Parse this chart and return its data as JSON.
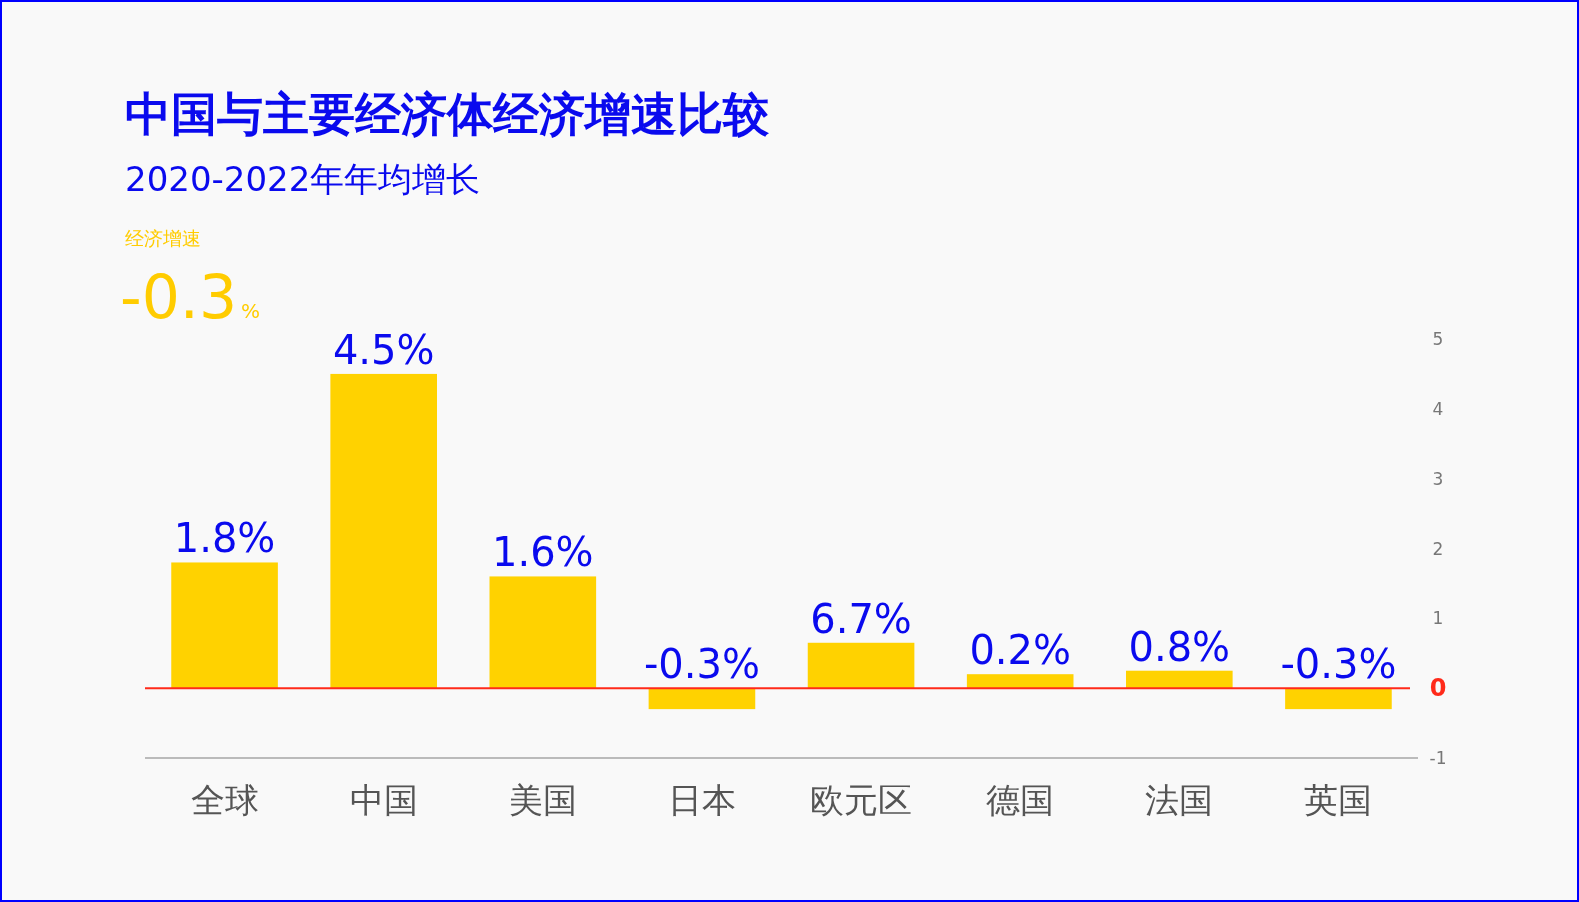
{
  "chart_data": {
    "type": "bar",
    "title": "中国与主要经济体经济增速比较",
    "subtitle": "2020-2022年年均增长",
    "annotations": [
      "经济增速",
      "-0.3%",
      {
        "text": "6.7%",
        "x": "欧元区",
        "y": 0.65
      },
      {
        "text": "0.8%",
        "x": "法国",
        "y": 0.25
      }
    ],
    "categories": [
      "全球",
      "中国",
      "美国",
      "日本",
      "欧元区",
      "德国",
      "法国",
      "英国"
    ],
    "values": [
      1.8,
      4.5,
      1.6,
      -0.3,
      0.65,
      0.2,
      0.25,
      -0.3
    ],
    "value_labels": [
      "1.8%",
      "4.5%",
      "1.6%",
      "-0.3%",
      null,
      "0.2%",
      null,
      "-0.3%"
    ],
    "color": "#ffd200",
    "ylim": [
      -1,
      5
    ],
    "yticks": [
      -1,
      0,
      1,
      2,
      3,
      4,
      5
    ],
    "ref_lines": [
      {
        "axis": "y",
        "value": 0,
        "color": "#ff2a1a"
      }
    ],
    "grid": false
  }
}
